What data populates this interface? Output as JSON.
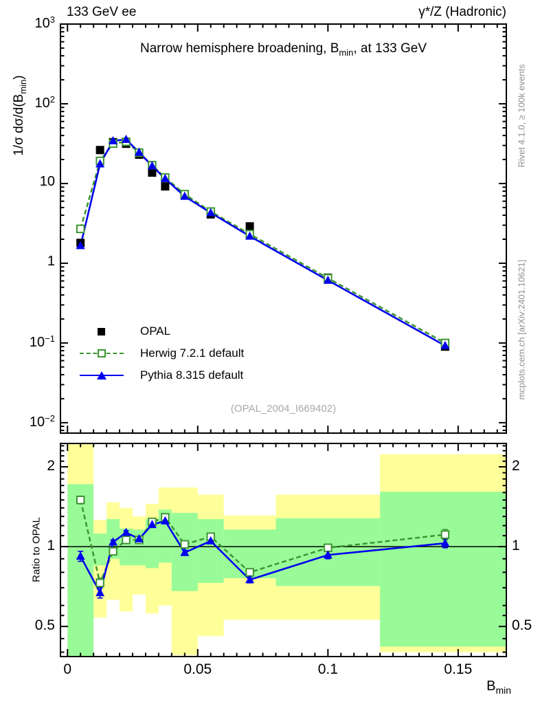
{
  "header": {
    "left": "133 GeV ee",
    "right": "γ*/Z (Hadronic)"
  },
  "titles": {
    "main_prefix": "Narrow hemisphere broadening, B",
    "main_sub": "min",
    "main_suffix": ", at 133 GeV",
    "watermark": "(OPAL_2004_I669402)"
  },
  "axes": {
    "y_label_prefix": "1/σ  dσ/d(B",
    "y_label_sub": "min",
    "y_label_suffix": ")",
    "ratio_y_label": "Ratio to OPAL",
    "x_label_prefix": "B",
    "x_label_sub": "min",
    "main_y_ticks": [
      {
        "base": "10",
        "exp": "3",
        "v": 1000
      },
      {
        "base": "10",
        "exp": "2",
        "v": 100
      },
      {
        "base": "10",
        "exp": "",
        "v": 10
      },
      {
        "base": "1",
        "exp": "",
        "v": 1
      },
      {
        "base": "10",
        "exp": "−1",
        "v": 0.1
      },
      {
        "base": "10",
        "exp": "−2",
        "v": 0.01
      }
    ],
    "x_ticks": [
      {
        "label": "0",
        "v": 0
      },
      {
        "label": "0.05",
        "v": 0.05
      },
      {
        "label": "0.1",
        "v": 0.1
      },
      {
        "label": "0.15",
        "v": 0.15
      }
    ],
    "ratio_y_ticks": [
      {
        "label": "2",
        "v": 2
      },
      {
        "label": "1",
        "v": 1
      },
      {
        "label": "0.5",
        "v": 0.5
      }
    ]
  },
  "side_notes": {
    "top": "Rivet 4.1.0, ≥ 100k events",
    "bottom": "mcplots.cern.ch [arXiv:2401.10621]"
  },
  "legend": [
    {
      "label": "OPAL",
      "marker": "black-filled-square",
      "line": "none"
    },
    {
      "label": "Herwig 7.2.1 default",
      "marker": "green-open-square",
      "line": "dashed"
    },
    {
      "label": "Pythia 8.315 default",
      "marker": "blue-filled-triangle",
      "line": "solid"
    }
  ],
  "colors": {
    "opal": "#000000",
    "herwig": "#3c9632",
    "pythia": "#0000ee",
    "band_yellow": "#ffff99",
    "band_green": "#99fb98",
    "annotation_gray": "#8f8f8f",
    "watermark_gray": "#a9a9a9"
  },
  "chart_data": [
    {
      "type": "line",
      "title": "Narrow hemisphere broadening, B_min, at 133 GeV",
      "xlabel": "B_min",
      "ylabel": "1/σ dσ/d(B_min)",
      "x": [
        0.005,
        0.0125,
        0.0175,
        0.0225,
        0.0275,
        0.0325,
        0.0375,
        0.045,
        0.055,
        0.07,
        0.1,
        0.145
      ],
      "series": [
        {
          "name": "OPAL",
          "values": [
            1.8,
            26.3,
            33.0,
            31.5,
            23.0,
            13.7,
            9.2,
            7.2,
            4.1,
            2.9,
            0.66,
            0.09
          ]
        },
        {
          "name": "Herwig 7.2.1 default",
          "values": [
            2.7,
            19.2,
            31.7,
            33.4,
            24.4,
            17.0,
            11.9,
            7.35,
            4.45,
            2.32,
            0.65,
            0.1
          ]
        },
        {
          "name": "Pythia 8.315 default",
          "values": [
            1.66,
            17.6,
            34.3,
            35.7,
            24.6,
            16.6,
            11.5,
            6.9,
            4.3,
            2.18,
            0.61,
            0.0925
          ]
        }
      ],
      "ylog": true,
      "xlim": [
        -0.0027,
        0.1685
      ],
      "ylim": [
        0.0074,
        1000
      ],
      "legend_position": "lower-left",
      "grid": false
    },
    {
      "type": "line",
      "title": "",
      "xlabel": "B_min",
      "ylabel": "Ratio to OPAL",
      "x": [
        0.005,
        0.0125,
        0.0175,
        0.0225,
        0.0275,
        0.0325,
        0.0375,
        0.045,
        0.055,
        0.07,
        0.1,
        0.145
      ],
      "series": [
        {
          "name": "Herwig 7.2.1 default",
          "values": [
            1.5,
            0.73,
            0.96,
            1.06,
            1.06,
            1.24,
            1.29,
            1.02,
            1.09,
            0.8,
            0.99,
            1.11
          ],
          "errors": [
            0.05,
            0.03,
            0.02,
            0.02,
            0.02,
            0.02,
            0.03,
            0.02,
            0.02,
            0.02,
            0.03,
            0.05
          ]
        },
        {
          "name": "Pythia 8.315 default",
          "values": [
            0.92,
            0.67,
            1.04,
            1.13,
            1.07,
            1.21,
            1.25,
            0.95,
            1.05,
            0.75,
            0.93,
            1.03
          ],
          "errors": [
            0.04,
            0.03,
            0.02,
            0.02,
            0.02,
            0.02,
            0.02,
            0.02,
            0.02,
            0.02,
            0.03,
            0.04
          ]
        }
      ],
      "reference_line": 1,
      "bands": {
        "bin_edges": [
          0,
          0.01,
          0.015,
          0.02,
          0.025,
          0.03,
          0.035,
          0.04,
          0.05,
          0.06,
          0.08,
          0.12,
          0.17
        ],
        "yellow": [
          [
            0.38,
            2.5
          ],
          [
            0.54,
            1.26
          ],
          [
            0.63,
            1.47
          ],
          [
            0.57,
            1.4
          ],
          [
            0.66,
            1.3
          ],
          [
            0.56,
            1.45
          ],
          [
            0.6,
            1.67
          ],
          [
            0.39,
            1.67
          ],
          [
            0.46,
            1.57
          ],
          [
            0.53,
            1.31
          ],
          [
            0.53,
            1.57
          ],
          [
            0.4,
            2.23
          ]
        ],
        "green": [
          [
            0.38,
            1.72
          ],
          [
            0.85,
            1.12
          ],
          [
            0.9,
            1.27
          ],
          [
            0.85,
            1.17
          ],
          [
            0.85,
            1.16
          ],
          [
            0.83,
            1.27
          ],
          [
            0.87,
            1.38
          ],
          [
            0.68,
            1.34
          ],
          [
            0.73,
            1.27
          ],
          [
            0.76,
            1.16
          ],
          [
            0.71,
            1.28
          ],
          [
            0.42,
            1.61
          ]
        ]
      },
      "ylog": true,
      "xlim": [
        -0.0027,
        0.1685
      ],
      "ylim": [
        0.385,
        2.45
      ],
      "grid": false
    }
  ]
}
